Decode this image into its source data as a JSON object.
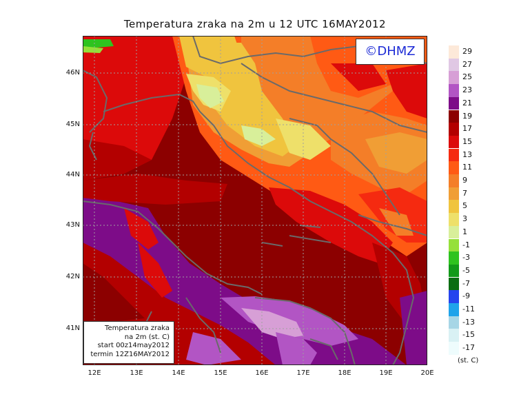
{
  "title": "Temperatura zraka na 2m u 12 UTC 16MAY2012",
  "copyright": "©DHMZ",
  "info_box": [
    "Temperatura zraka",
    "na 2m (st. C)",
    "start 00z14may2012",
    "termin 12Z16MAY2012"
  ],
  "lat_labels": [
    "46N",
    "45N",
    "44N",
    "43N",
    "42N",
    "41N"
  ],
  "lon_labels": [
    "12E",
    "13E",
    "14E",
    "15E",
    "16E",
    "17E",
    "18E",
    "19E",
    "20E"
  ],
  "legend": {
    "labels": [
      "29",
      "27",
      "25",
      "23",
      "21",
      "19",
      "17",
      "15",
      "13",
      "11",
      "9",
      "7",
      "5",
      "3",
      "1",
      "-1",
      "-3",
      "-5",
      "-7",
      "-9",
      "-11",
      "-13",
      "-15",
      "-17"
    ],
    "colors": [
      "#fde9d9",
      "#e0c8e4",
      "#d79fd6",
      "#b255c4",
      "#7d0c88",
      "#8c0000",
      "#b30000",
      "#dc0a0a",
      "#f52a10",
      "#ff5a14",
      "#f47e28",
      "#f09e35",
      "#f0c43e",
      "#eee06a",
      "#d8ef9a",
      "#95e03a",
      "#2ec31f",
      "#119a19",
      "#0a6d12",
      "#2544ee",
      "#1fa3ea",
      "#a7d6e6",
      "#d9f1f4",
      "#eefcfd"
    ],
    "unit": "(st. C)"
  }
}
